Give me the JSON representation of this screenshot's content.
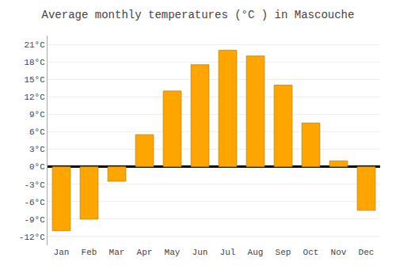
{
  "chart_data": {
    "type": "bar",
    "title": "Average monthly temperatures (°C ) in Mascouche",
    "categories": [
      "Jan",
      "Feb",
      "Mar",
      "Apr",
      "May",
      "Jun",
      "Jul",
      "Aug",
      "Sep",
      "Oct",
      "Nov",
      "Dec"
    ],
    "values": [
      -11.0,
      -9.0,
      -2.5,
      5.5,
      13.0,
      17.5,
      20.0,
      19.0,
      14.0,
      7.5,
      1.0,
      -7.5
    ],
    "color": "#FFA500",
    "ylim": [
      -13.5,
      22.5
    ],
    "yticks": [
      {
        "value": -12,
        "label": "-12°C"
      },
      {
        "value": -9,
        "label": "-9°C"
      },
      {
        "value": -6,
        "label": "-6°C"
      },
      {
        "value": -3,
        "label": "-3°C"
      },
      {
        "value": 0,
        "label": "0°C"
      },
      {
        "value": 3,
        "label": "3°C"
      },
      {
        "value": 6,
        "label": "6°C"
      },
      {
        "value": 9,
        "label": "9°C"
      },
      {
        "value": 12,
        "label": "12°C"
      },
      {
        "value": 15,
        "label": "15°C"
      },
      {
        "value": 18,
        "label": "18°C"
      },
      {
        "value": 21,
        "label": "21°C"
      }
    ],
    "grid": true
  }
}
